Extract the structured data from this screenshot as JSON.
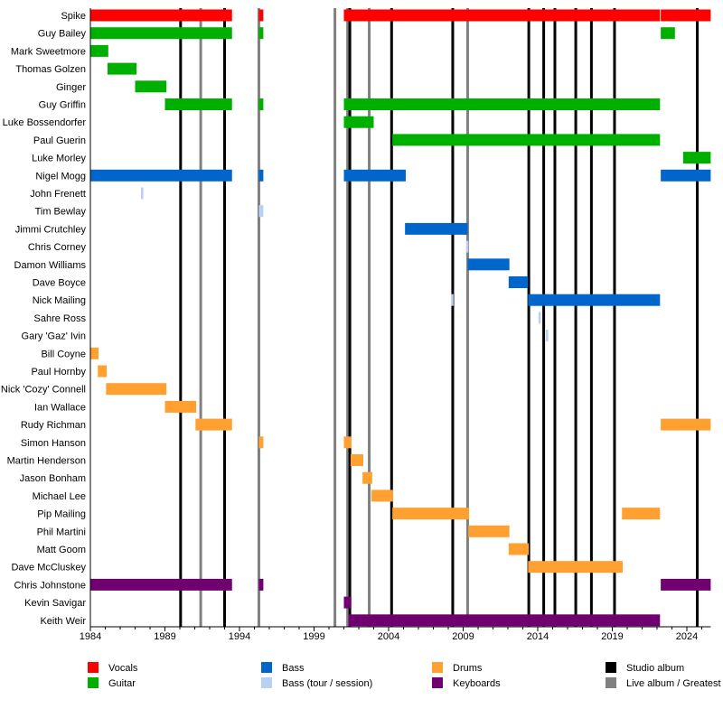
{
  "chart_data": {
    "type": "timeline",
    "xlim": [
      1984,
      2025.6
    ],
    "x_ticks": [
      1984,
      1989,
      1994,
      1999,
      2004,
      2009,
      2014,
      2019,
      2024
    ],
    "colors": {
      "Vocals": "#ff0000",
      "Guitar": "#00b000",
      "Bass": "#0066cc",
      "Bass (tour / session)": "#b8d0f4",
      "Drums": "#ffa030",
      "Keyboards": "#700070",
      "Studio album": "#000000",
      "Live album / Greatest Hits": "#808080"
    },
    "members": [
      {
        "name": "Spike",
        "bars": [
          {
            "role": "Vocals",
            "from": 1984,
            "to": 1993.5
          },
          {
            "role": "Vocals",
            "from": 1995.3,
            "to": 1995.6
          },
          {
            "role": "Vocals",
            "from": 2001,
            "to": 2022.2
          },
          {
            "role": "Vocals",
            "from": 2022.25,
            "to": 2025.6
          }
        ]
      },
      {
        "name": "Guy Bailey",
        "bars": [
          {
            "role": "Guitar",
            "from": 1984,
            "to": 1993.5
          },
          {
            "role": "Guitar",
            "from": 1995.3,
            "to": 1995.6
          },
          {
            "role": "Guitar",
            "from": 2022.25,
            "to": 2023.2
          }
        ]
      },
      {
        "name": "Mark Sweetmore",
        "bars": [
          {
            "role": "Guitar",
            "from": 1984,
            "to": 1985.2
          }
        ]
      },
      {
        "name": "Thomas Golzen",
        "bars": [
          {
            "role": "Guitar",
            "from": 1985.15,
            "to": 1987.1
          }
        ]
      },
      {
        "name": "Ginger",
        "bars": [
          {
            "role": "Guitar",
            "from": 1987,
            "to": 1989.1
          }
        ]
      },
      {
        "name": "Guy Griffin",
        "bars": [
          {
            "role": "Guitar",
            "from": 1989,
            "to": 1993.5
          },
          {
            "role": "Guitar",
            "from": 1995.3,
            "to": 1995.6
          },
          {
            "role": "Guitar",
            "from": 2001,
            "to": 2022.2
          }
        ]
      },
      {
        "name": "Luke Bossendorfer",
        "bars": [
          {
            "role": "Guitar",
            "from": 2001,
            "to": 2003
          }
        ]
      },
      {
        "name": "Paul Guerin",
        "bars": [
          {
            "role": "Guitar",
            "from": 2004.25,
            "to": 2022.2
          }
        ]
      },
      {
        "name": "Luke Morley",
        "bars": [
          {
            "role": "Guitar",
            "from": 2023.75,
            "to": 2025.6
          }
        ]
      },
      {
        "name": "Nigel Mogg",
        "bars": [
          {
            "role": "Bass",
            "from": 1984,
            "to": 1993.5
          },
          {
            "role": "Bass",
            "from": 1995.3,
            "to": 1995.6
          },
          {
            "role": "Bass",
            "from": 2001,
            "to": 2005.15
          },
          {
            "role": "Bass",
            "from": 2022.25,
            "to": 2025.6
          }
        ]
      },
      {
        "name": "John Frenett",
        "bars": [
          {
            "role": "Bass (tour / session)",
            "from": 1987.4,
            "to": 1987.5
          }
        ]
      },
      {
        "name": "Tim Bewlay",
        "bars": [
          {
            "role": "Bass (tour / session)",
            "from": 1995.3,
            "to": 1995.6
          }
        ]
      },
      {
        "name": "Jimmi Crutchley",
        "bars": [
          {
            "role": "Bass",
            "from": 2005.1,
            "to": 2009.3
          }
        ]
      },
      {
        "name": "Chris Corney",
        "bars": [
          {
            "role": "Bass (tour / session)",
            "from": 2009.2,
            "to": 2009.3
          }
        ]
      },
      {
        "name": "Damon Williams",
        "bars": [
          {
            "role": "Bass",
            "from": 2009.3,
            "to": 2012.1
          }
        ]
      },
      {
        "name": "Dave Boyce",
        "bars": [
          {
            "role": "Bass",
            "from": 2012.05,
            "to": 2013.35
          }
        ]
      },
      {
        "name": "Nick Mailing",
        "bars": [
          {
            "role": "Bass (tour / session)",
            "from": 2008.2,
            "to": 2008.35
          },
          {
            "role": "Bass",
            "from": 2013.35,
            "to": 2022.2
          }
        ]
      },
      {
        "name": "Sahre Ross",
        "bars": [
          {
            "role": "Bass (tour / session)",
            "from": 2014.05,
            "to": 2014.15
          }
        ]
      },
      {
        "name": "Gary 'Gaz' Ivin",
        "bars": [
          {
            "role": "Bass (tour / session)",
            "from": 2014.55,
            "to": 2014.7
          }
        ]
      },
      {
        "name": "Bill Coyne",
        "bars": [
          {
            "role": "Drums",
            "from": 1984,
            "to": 1984.55
          }
        ]
      },
      {
        "name": "Paul Hornby",
        "bars": [
          {
            "role": "Drums",
            "from": 1984.5,
            "to": 1985.1
          }
        ]
      },
      {
        "name": "Nick 'Cozy' Connell",
        "bars": [
          {
            "role": "Drums",
            "from": 1985.05,
            "to": 1989.1
          }
        ]
      },
      {
        "name": "Ian Wallace",
        "bars": [
          {
            "role": "Drums",
            "from": 1989,
            "to": 1991.1
          }
        ]
      },
      {
        "name": "Rudy Richman",
        "bars": [
          {
            "role": "Drums",
            "from": 1991.05,
            "to": 1993.5
          },
          {
            "role": "Drums",
            "from": 2022.25,
            "to": 2025.6
          }
        ]
      },
      {
        "name": "Simon Hanson",
        "bars": [
          {
            "role": "Drums",
            "from": 1995.3,
            "to": 1995.6
          },
          {
            "role": "Drums",
            "from": 2001,
            "to": 2001.5
          }
        ]
      },
      {
        "name": "Martin Henderson",
        "bars": [
          {
            "role": "Drums",
            "from": 2001.45,
            "to": 2002.3
          }
        ]
      },
      {
        "name": "Jason Bonham",
        "bars": [
          {
            "role": "Drums",
            "from": 2002.25,
            "to": 2002.9
          }
        ]
      },
      {
        "name": "Michael Lee",
        "bars": [
          {
            "role": "Drums",
            "from": 2002.85,
            "to": 2004.3
          }
        ]
      },
      {
        "name": "Pip Mailing",
        "bars": [
          {
            "role": "Drums",
            "from": 2004.25,
            "to": 2009.4
          },
          {
            "role": "Drums",
            "from": 2019.65,
            "to": 2022.2
          }
        ]
      },
      {
        "name": "Phil Martini",
        "bars": [
          {
            "role": "Drums",
            "from": 2009.35,
            "to": 2012.1
          }
        ]
      },
      {
        "name": "Matt Goom",
        "bars": [
          {
            "role": "Drums",
            "from": 2012.05,
            "to": 2013.4
          }
        ]
      },
      {
        "name": "Dave McCluskey",
        "bars": [
          {
            "role": "Drums",
            "from": 2013.35,
            "to": 2019.7
          }
        ]
      },
      {
        "name": "Chris Johnstone",
        "bars": [
          {
            "role": "Keyboards",
            "from": 1984,
            "to": 1993.5
          },
          {
            "role": "Keyboards",
            "from": 1995.3,
            "to": 1995.6
          },
          {
            "role": "Keyboards",
            "from": 2022.25,
            "to": 2025.6
          }
        ]
      },
      {
        "name": "Kevin Savigar",
        "bars": [
          {
            "role": "Keyboards",
            "from": 2001,
            "to": 2001.5
          }
        ]
      },
      {
        "name": "Keith Weir",
        "bars": [
          {
            "role": "Keyboards",
            "from": 2001.3,
            "to": 2022.2
          }
        ]
      }
    ],
    "events": [
      {
        "type": "Studio album",
        "year": 1990.05
      },
      {
        "type": "Live album / Greatest Hits",
        "year": 1991.4
      },
      {
        "type": "Studio album",
        "year": 1993.0
      },
      {
        "type": "Live album / Greatest Hits",
        "year": 1995.3
      },
      {
        "type": "Live album / Greatest Hits",
        "year": 2000.4
      },
      {
        "type": "Live album / Greatest Hits",
        "year": 2001.25
      },
      {
        "type": "Studio album",
        "year": 2001.4
      },
      {
        "type": "Live album / Greatest Hits",
        "year": 2002.7
      },
      {
        "type": "Studio album",
        "year": 2004.2
      },
      {
        "type": "Studio album",
        "year": 2008.3
      },
      {
        "type": "Live album / Greatest Hits",
        "year": 2009.3
      },
      {
        "type": "Studio album",
        "year": 2013.4
      },
      {
        "type": "Studio album",
        "year": 2014.4
      },
      {
        "type": "Studio album",
        "year": 2015.15
      },
      {
        "type": "Studio album",
        "year": 2016.55
      },
      {
        "type": "Studio album",
        "year": 2017.6
      },
      {
        "type": "Studio album",
        "year": 2019.15
      },
      {
        "type": "Studio album",
        "year": 2024.7
      }
    ],
    "legend": [
      "Vocals",
      "Guitar",
      "Bass",
      "Bass (tour / session)",
      "Drums",
      "Keyboards",
      "Studio album",
      "Live album / Greatest Hits"
    ],
    "legend_placement": "bottom"
  }
}
